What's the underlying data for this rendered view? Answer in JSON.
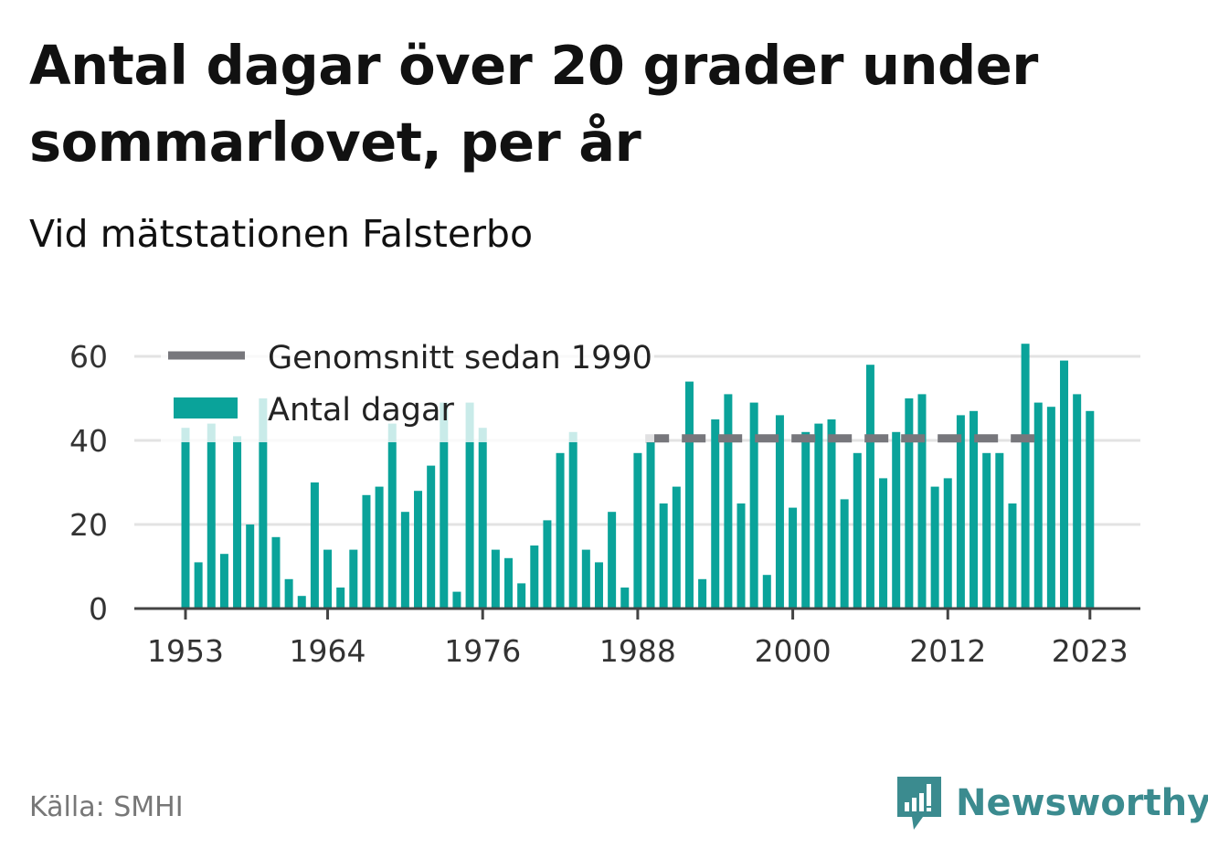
{
  "title": "Antal dagar över 20 grader under sommarlovet, per år",
  "subtitle": "Vid mätstationen Falsterbo",
  "source": "Källa: SMHI",
  "brand": "Newsworthy",
  "colors": {
    "bar": "#0aa39a",
    "average": "#77777c",
    "grid": "#e3e3e3",
    "axis": "#444444",
    "brand": "#3b8b8f"
  },
  "icons": {
    "brand_logo": "bar-chart-speech-bubble-icon"
  },
  "chart_data": {
    "type": "bar",
    "ylim": [
      0,
      60
    ],
    "yticks": [
      0,
      20,
      40,
      60
    ],
    "xticks": [
      1953,
      1964,
      1976,
      1988,
      2000,
      2012,
      2023
    ],
    "grid": true,
    "legend": {
      "position": "top-left",
      "entries": [
        "Genomsnitt sedan 1990",
        "Antal dagar"
      ]
    },
    "x": [
      1953,
      1954,
      1955,
      1956,
      1957,
      1958,
      1959,
      1960,
      1961,
      1962,
      1963,
      1964,
      1965,
      1966,
      1967,
      1968,
      1969,
      1970,
      1971,
      1972,
      1973,
      1974,
      1975,
      1976,
      1977,
      1978,
      1979,
      1980,
      1981,
      1982,
      1983,
      1984,
      1985,
      1986,
      1987,
      1988,
      1989,
      1990,
      1991,
      1992,
      1993,
      1994,
      1995,
      1996,
      1997,
      1998,
      1999,
      2000,
      2001,
      2002,
      2003,
      2004,
      2005,
      2006,
      2007,
      2008,
      2009,
      2010,
      2011,
      2012,
      2013,
      2014,
      2015,
      2016,
      2017,
      2018,
      2019,
      2020,
      2021,
      2022,
      2023
    ],
    "series": [
      {
        "name": "Antal dagar",
        "type": "bar",
        "values": [
          43,
          11,
          44,
          13,
          41,
          20,
          50,
          17,
          7,
          3,
          30,
          14,
          5,
          14,
          27,
          29,
          44,
          23,
          28,
          34,
          49,
          4,
          49,
          43,
          14,
          12,
          6,
          15,
          21,
          37,
          42,
          14,
          11,
          23,
          5,
          37,
          40,
          25,
          29,
          54,
          7,
          45,
          51,
          25,
          49,
          8,
          46,
          24,
          42,
          44,
          45,
          26,
          37,
          58,
          31,
          42,
          50,
          51,
          29,
          31,
          46,
          47,
          37,
          37,
          25,
          63,
          49,
          48,
          59,
          51,
          47
        ]
      },
      {
        "name": "Genomsnitt sedan 1990",
        "type": "line",
        "value": 40.5,
        "x_range": [
          1990,
          2018
        ]
      }
    ]
  }
}
